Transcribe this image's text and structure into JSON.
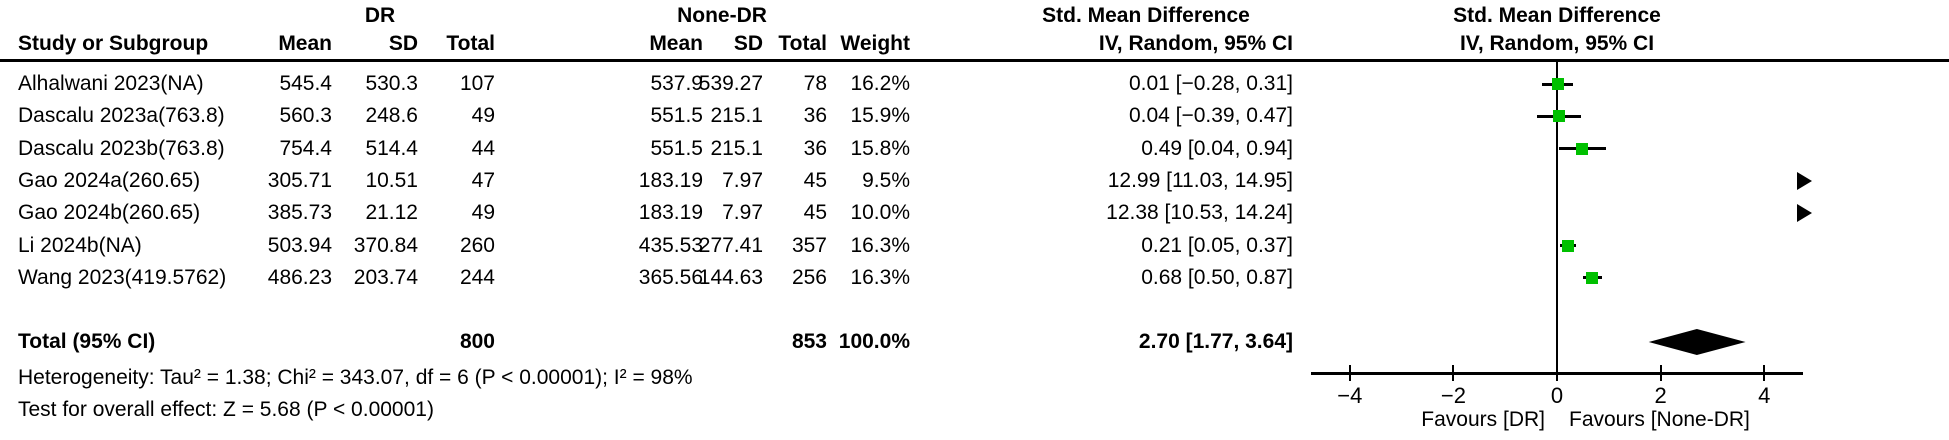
{
  "header": {
    "group1_label": "DR",
    "group2_label": "None-DR",
    "effect_header_line1": "Std. Mean Difference",
    "effect_header_line2": "IV, Random, 95% CI",
    "plot_header_line1": "Std. Mean Difference",
    "plot_header_line2": "IV, Random, 95% CI",
    "col_study": "Study or Subgroup",
    "col_mean": "Mean",
    "col_sd": "SD",
    "col_total": "Total",
    "col_weight": "Weight"
  },
  "chart_data": {
    "type": "forest",
    "effect_measure": "Std. Mean Difference",
    "method": "IV, Random, 95% CI",
    "marker_color": "#00C000",
    "diamond_color": "#000000",
    "studies": [
      {
        "name": "Alhalwani 2023(NA)",
        "mean1": "545.4",
        "sd1": "530.3",
        "total1": "107",
        "mean2": "537.9",
        "sd2": "539.27",
        "total2": "78",
        "weight": "16.2%",
        "ci_text": "0.01 [−0.28, 0.31]",
        "effect": 0.01,
        "lo": -0.28,
        "hi": 0.31
      },
      {
        "name": "Dascalu 2023a(763.8)",
        "mean1": "560.3",
        "sd1": "248.6",
        "total1": "49",
        "mean2": "551.5",
        "sd2": "215.1",
        "total2": "36",
        "weight": "15.9%",
        "ci_text": "0.04 [−0.39, 0.47]",
        "effect": 0.04,
        "lo": -0.39,
        "hi": 0.47
      },
      {
        "name": "Dascalu 2023b(763.8)",
        "mean1": "754.4",
        "sd1": "514.4",
        "total1": "44",
        "mean2": "551.5",
        "sd2": "215.1",
        "total2": "36",
        "weight": "15.8%",
        "ci_text": "0.49 [0.04, 0.94]",
        "effect": 0.49,
        "lo": 0.04,
        "hi": 0.94
      },
      {
        "name": "Gao 2024a(260.65)",
        "mean1": "305.71",
        "sd1": "10.51",
        "total1": "47",
        "mean2": "183.19",
        "sd2": "7.97",
        "total2": "45",
        "weight": "9.5%",
        "ci_text": "12.99 [11.03, 14.95]",
        "effect": 12.99,
        "lo": 11.03,
        "hi": 14.95
      },
      {
        "name": "Gao 2024b(260.65)",
        "mean1": "385.73",
        "sd1": "21.12",
        "total1": "49",
        "mean2": "183.19",
        "sd2": "7.97",
        "total2": "45",
        "weight": "10.0%",
        "ci_text": "12.38 [10.53, 14.24]",
        "effect": 12.38,
        "lo": 10.53,
        "hi": 14.24
      },
      {
        "name": "Li 2024b(NA)",
        "mean1": "503.94",
        "sd1": "370.84",
        "total1": "260",
        "mean2": "435.53",
        "sd2": "277.41",
        "total2": "357",
        "weight": "16.3%",
        "ci_text": "0.21 [0.05, 0.37]",
        "effect": 0.21,
        "lo": 0.05,
        "hi": 0.37
      },
      {
        "name": "Wang 2023(419.5762)",
        "mean1": "486.23",
        "sd1": "203.74",
        "total1": "244",
        "mean2": "365.56",
        "sd2": "144.63",
        "total2": "256",
        "weight": "16.3%",
        "ci_text": "0.68 [0.50, 0.87]",
        "effect": 0.68,
        "lo": 0.5,
        "hi": 0.87
      }
    ],
    "total": {
      "label": "Total (95% CI)",
      "total1": "800",
      "total2": "853",
      "weight": "100.0%",
      "ci_text": "2.70 [1.77, 3.64]",
      "effect": 2.7,
      "lo": 1.77,
      "hi": 3.64
    },
    "axis": {
      "ticks": [
        -4,
        -2,
        0,
        2,
        4
      ],
      "tick_labels": [
        "−4",
        "−2",
        "0",
        "2",
        "4"
      ],
      "xlim": [
        -4.75,
        4.75
      ],
      "favours_left": "Favours [DR]",
      "favours_right": "Favours [None-DR]"
    },
    "heterogeneity": "Heterogeneity: Tau² = 1.38; Chi² = 343.07, df = 6 (P < 0.00001); I² = 98%",
    "overall_effect": "Test for overall effect: Z = 5.68 (P < 0.00001)"
  }
}
